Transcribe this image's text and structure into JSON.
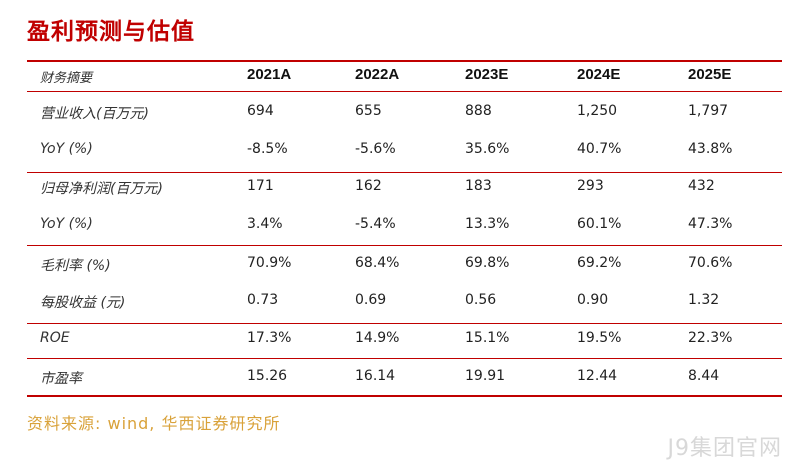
{
  "title": "盈利预测与估值",
  "header": {
    "label": "财务摘要",
    "years": [
      "2021A",
      "2022A",
      "2023E",
      "2024E",
      "2025E"
    ]
  },
  "rows": [
    {
      "label": "营业收入(百万元)",
      "values": [
        "694",
        "655",
        "888",
        "1,250",
        "1,797"
      ]
    },
    {
      "label": "YoY (%)",
      "values": [
        "-8.5%",
        "-5.6%",
        "35.6%",
        "40.7%",
        "43.8%"
      ]
    },
    {
      "label": "归母净利润(百万元)",
      "values": [
        "171",
        "162",
        "183",
        "293",
        "432"
      ]
    },
    {
      "label": "YoY (%)",
      "values": [
        "3.4%",
        "-5.4%",
        "13.3%",
        "60.1%",
        "47.3%"
      ]
    },
    {
      "label": "毛利率 (%)",
      "values": [
        "70.9%",
        "68.4%",
        "69.8%",
        "69.2%",
        "70.6%"
      ]
    },
    {
      "label": "每股收益 (元)",
      "values": [
        "0.73",
        "0.69",
        "0.56",
        "0.90",
        "1.32"
      ]
    },
    {
      "label": "ROE",
      "values": [
        "17.3%",
        "14.9%",
        "15.1%",
        "19.5%",
        "22.3%"
      ]
    },
    {
      "label": "市盈率",
      "values": [
        "15.26",
        "16.14",
        "19.91",
        "12.44",
        "8.44"
      ]
    }
  ],
  "source": "资料来源: wind, 华西证券研究所",
  "watermark": "J9集团官网",
  "colors": {
    "accent": "#c00000",
    "source": "#d9a23a"
  }
}
